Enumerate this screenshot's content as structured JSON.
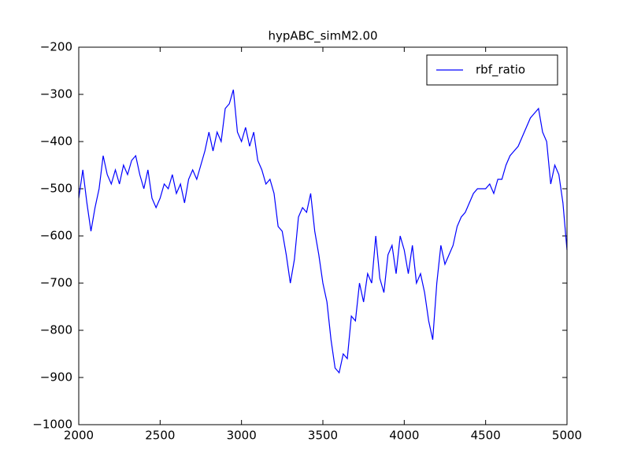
{
  "chart_data": {
    "type": "line",
    "title": "hypABC_simM2.00",
    "x": [
      2000,
      2025,
      2050,
      2075,
      2100,
      2125,
      2150,
      2175,
      2200,
      2225,
      2250,
      2275,
      2300,
      2325,
      2350,
      2375,
      2400,
      2425,
      2450,
      2475,
      2500,
      2525,
      2550,
      2575,
      2600,
      2625,
      2650,
      2675,
      2700,
      2725,
      2750,
      2775,
      2800,
      2825,
      2850,
      2875,
      2900,
      2925,
      2950,
      2975,
      3000,
      3025,
      3050,
      3075,
      3100,
      3125,
      3150,
      3175,
      3200,
      3225,
      3250,
      3275,
      3300,
      3325,
      3350,
      3375,
      3400,
      3425,
      3450,
      3475,
      3500,
      3525,
      3550,
      3575,
      3600,
      3625,
      3650,
      3675,
      3700,
      3725,
      3750,
      3775,
      3800,
      3825,
      3850,
      3875,
      3900,
      3925,
      3950,
      3975,
      4000,
      4025,
      4050,
      4075,
      4100,
      4125,
      4150,
      4175,
      4200,
      4225,
      4250,
      4275,
      4300,
      4325,
      4350,
      4375,
      4400,
      4425,
      4450,
      4475,
      4500,
      4525,
      4550,
      4575,
      4600,
      4625,
      4650,
      4675,
      4700,
      4725,
      4750,
      4775,
      4800,
      4825,
      4850,
      4875,
      4900,
      4925,
      4950,
      4975,
      5000
    ],
    "series": [
      {
        "name": "rbf_ratio",
        "color": "#0000ff",
        "values": [
          -520,
          -460,
          -530,
          -590,
          -540,
          -500,
          -430,
          -470,
          -490,
          -460,
          -490,
          -450,
          -470,
          -440,
          -430,
          -470,
          -500,
          -460,
          -520,
          -540,
          -520,
          -490,
          -500,
          -470,
          -510,
          -490,
          -530,
          -480,
          -460,
          -480,
          -450,
          -420,
          -380,
          -420,
          -380,
          -400,
          -330,
          -320,
          -290,
          -380,
          -400,
          -370,
          -410,
          -380,
          -440,
          -460,
          -490,
          -480,
          -510,
          -580,
          -590,
          -640,
          -700,
          -650,
          -560,
          -540,
          -550,
          -510,
          -590,
          -640,
          -700,
          -740,
          -820,
          -880,
          -890,
          -850,
          -860,
          -770,
          -780,
          -700,
          -740,
          -680,
          -700,
          -600,
          -690,
          -720,
          -640,
          -620,
          -680,
          -600,
          -630,
          -680,
          -620,
          -700,
          -680,
          -720,
          -780,
          -820,
          -700,
          -620,
          -660,
          -640,
          -620,
          -580,
          -560,
          -550,
          -530,
          -510,
          -500,
          -500,
          -500,
          -490,
          -510,
          -480,
          -480,
          -450,
          -430,
          -420,
          -410,
          -390,
          -370,
          -350,
          -340,
          -330,
          -380,
          -400,
          -490,
          -450,
          -470,
          -530,
          -630
        ]
      }
    ],
    "xlim": [
      2000,
      5000
    ],
    "xticks": [
      2000,
      2500,
      3000,
      3500,
      4000,
      4500,
      5000
    ],
    "ylim": [
      -1000,
      -200
    ],
    "yticks": [
      {
        "value": -1000,
        "label": "−1000"
      },
      {
        "value": -900,
        "label": "−900"
      },
      {
        "value": -800,
        "label": "−800"
      },
      {
        "value": -700,
        "label": "−700"
      },
      {
        "value": -600,
        "label": "−600"
      },
      {
        "value": -500,
        "label": "−500"
      },
      {
        "value": -400,
        "label": "−400"
      },
      {
        "value": -300,
        "label": "−300"
      },
      {
        "value": -200,
        "label": "−200"
      }
    ],
    "legend": "upper right"
  }
}
